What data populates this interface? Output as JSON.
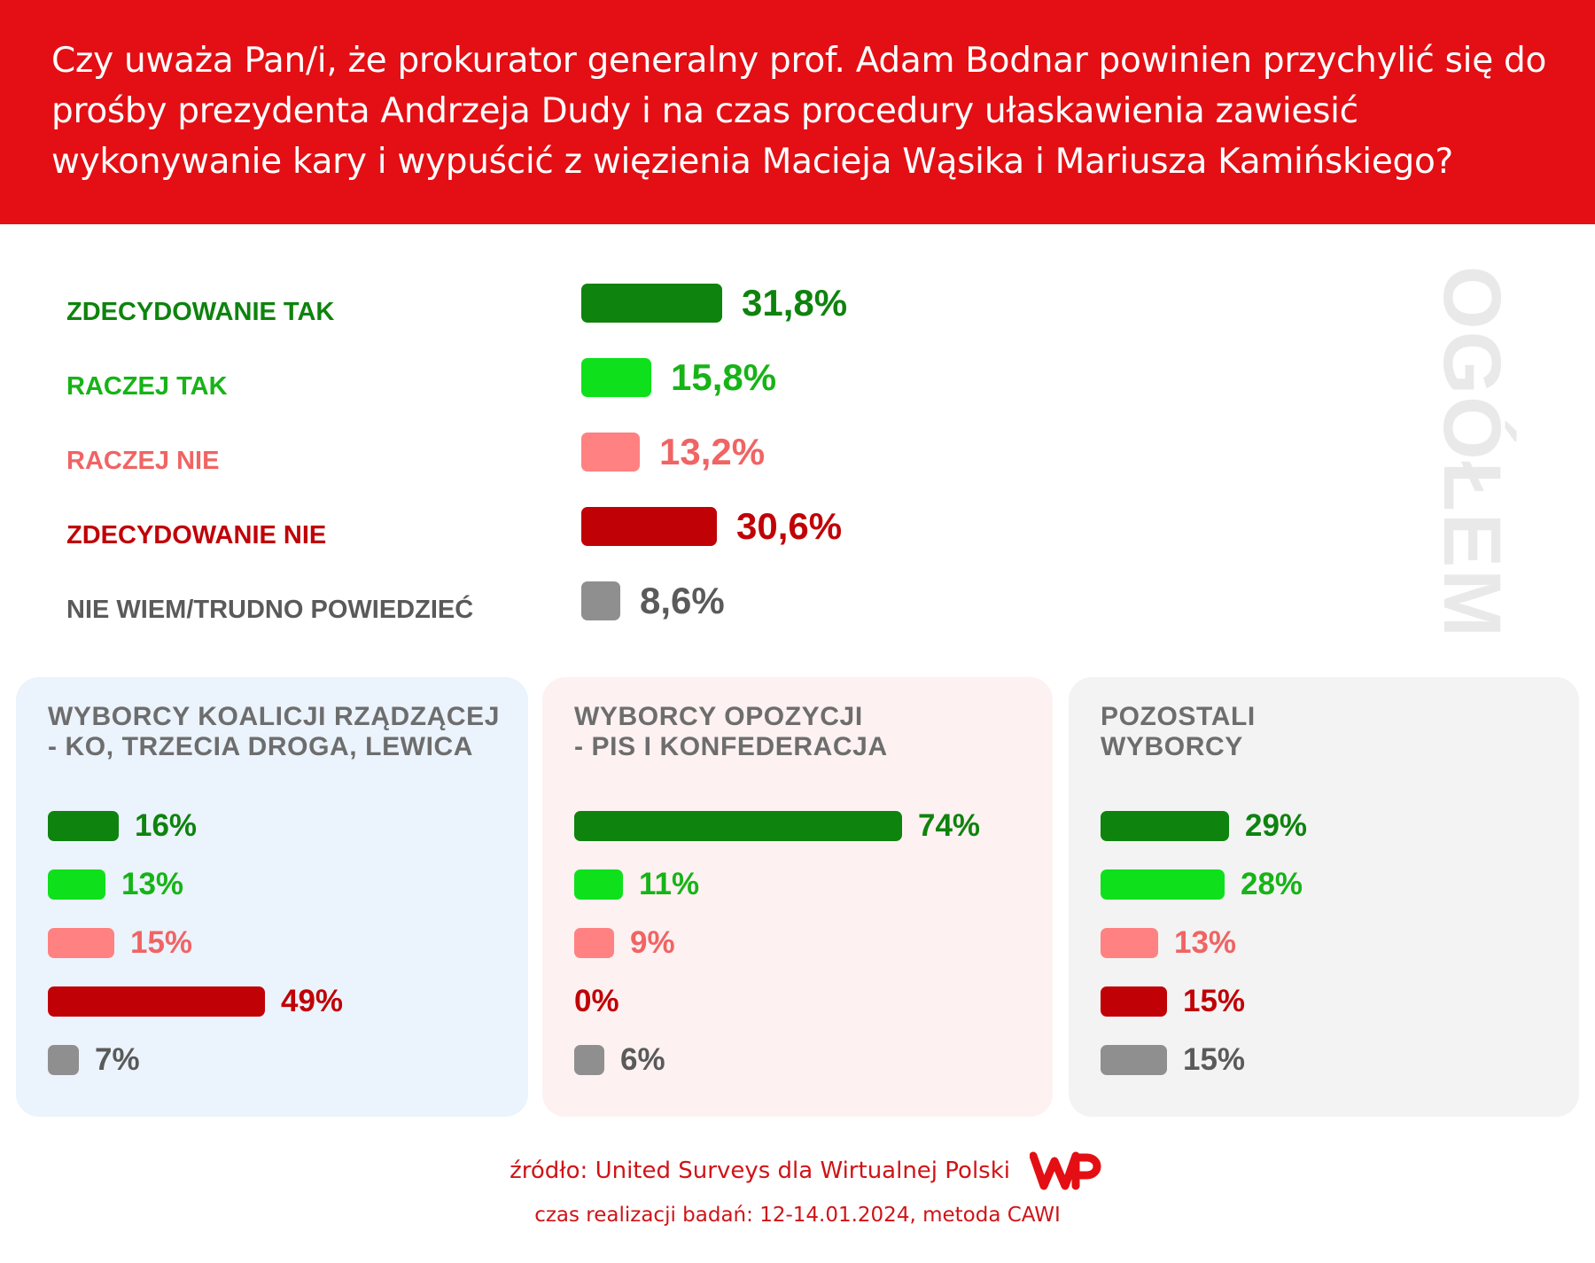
{
  "header": {
    "title": "Czy uważa Pan/i, że prokurator generalny prof. Adam Bodnar powinien przychylić się do prośby prezydenta Andrzeja Dudy i na czas procedury ułaskawienia zawiesić wykonywanie kary i wypuścić z więzienia Macieja Wąsika i Mariusza Kamińskiego?"
  },
  "side_label": "OGÓŁEM",
  "colors": {
    "header_bg": "#e30f14",
    "zdecydowanie_tak": "#0e830e",
    "raczej_tak": "#0ee11b",
    "raczej_nie": "#ff8181",
    "zdecydowanie_nie": "#c00207",
    "nie_wiem": "#8f8f8f",
    "panel_koalicja_bg": "#ebf3fc",
    "panel_opozycja_bg": "#fdf1f1",
    "panel_pozostali_bg": "#f3f3f3",
    "footer_text": "#d01317"
  },
  "chart_data": [
    {
      "type": "bar",
      "title": "OGÓŁEM",
      "categories": [
        "ZDECYDOWANIE TAK",
        "RACZEJ TAK",
        "RACZEJ NIE",
        "ZDECYDOWANIE NIE",
        "NIE WIEM/TRUDNO POWIEDZIEĆ"
      ],
      "values": [
        31.8,
        15.8,
        13.2,
        30.6,
        8.6
      ],
      "value_labels": [
        "31,8%",
        "15,8%",
        "13,2%",
        "30,6%",
        "8,6%"
      ],
      "colors": [
        "#0e830e",
        "#0ee11b",
        "#ff8181",
        "#c00207",
        "#8f8f8f"
      ],
      "label_colors": [
        "#0e830e",
        "#17b317",
        "#f06464",
        "#c00207",
        "#5a5a5a"
      ]
    },
    {
      "type": "bar",
      "title_lines": [
        "WYBORCY KOALICJI RZĄDZĄCEJ",
        "- KO, TRZECIA DROGA, LEWICA"
      ],
      "categories": [
        "ZDECYDOWANIE TAK",
        "RACZEJ TAK",
        "RACZEJ NIE",
        "ZDECYDOWANIE NIE",
        "NIE WIEM/TRUDNO POWIEDZIEĆ"
      ],
      "values": [
        16,
        13,
        15,
        49,
        7
      ],
      "value_labels": [
        "16%",
        "13%",
        "15%",
        "49%",
        "7%"
      ]
    },
    {
      "type": "bar",
      "title_lines": [
        "WYBORCY OPOZYCJI",
        "- PIS I KONFEDERACJA"
      ],
      "categories": [
        "ZDECYDOWANIE TAK",
        "RACZEJ TAK",
        "RACZEJ NIE",
        "ZDECYDOWANIE NIE",
        "NIE WIEM/TRUDNO POWIEDZIEĆ"
      ],
      "values": [
        74,
        11,
        9,
        0,
        6
      ],
      "value_labels": [
        "74%",
        "11%",
        "9%",
        "0%",
        "6%"
      ]
    },
    {
      "type": "bar",
      "title_lines": [
        "POZOSTALI",
        "WYBORCY"
      ],
      "categories": [
        "ZDECYDOWANIE TAK",
        "RACZEJ TAK",
        "RACZEJ NIE",
        "ZDECYDOWANIE NIE",
        "NIE WIEM/TRUDNO POWIEDZIEĆ"
      ],
      "values": [
        29,
        28,
        13,
        15,
        15
      ],
      "value_labels": [
        "29%",
        "28%",
        "13%",
        "15%",
        "15%"
      ]
    }
  ],
  "footer": {
    "source": "źródło: United Surveys dla Wirtualnej Polski",
    "date": "czas realizacji badań: 12-14.01.2024, metoda CAWI",
    "logo_icon": "wp-logo-icon"
  }
}
